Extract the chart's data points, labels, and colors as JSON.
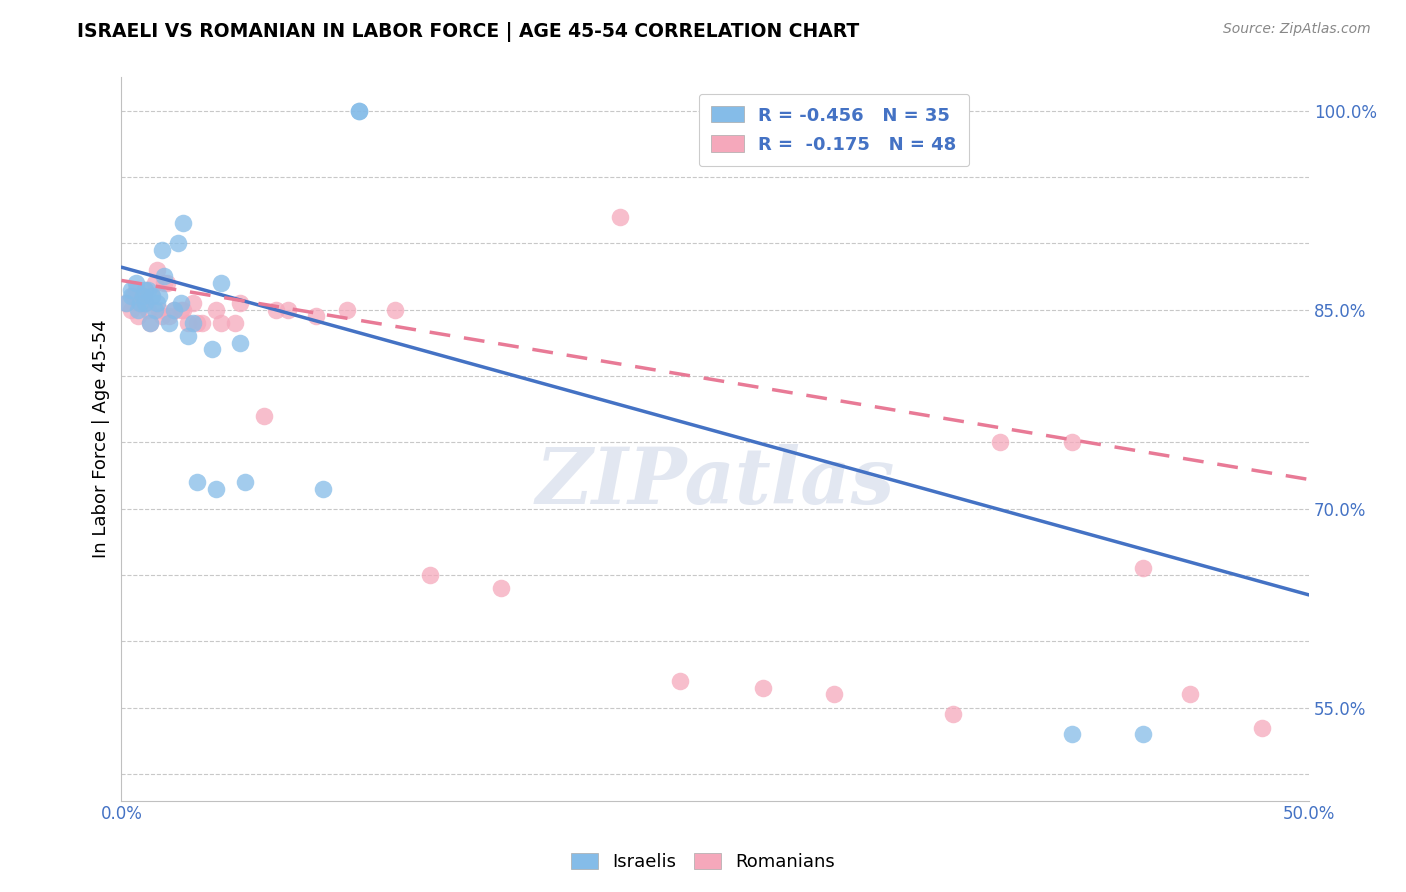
{
  "title": "ISRAELI VS ROMANIAN IN LABOR FORCE | AGE 45-54 CORRELATION CHART",
  "source": "Source: ZipAtlas.com",
  "ylabel": "In Labor Force | Age 45-54",
  "xlabel": "",
  "xlim": [
    0.0,
    0.5
  ],
  "ylim": [
    0.48,
    1.025
  ],
  "xticks": [
    0.0,
    0.1,
    0.2,
    0.3,
    0.4,
    0.5
  ],
  "ytick_labels_shown": [
    0.55,
    0.7,
    0.85,
    1.0
  ],
  "xtick_labels_shown": [
    0.0,
    0.5
  ],
  "israel_color": "#85bce8",
  "romanian_color": "#f5a8bb",
  "israel_line_color": "#4472c4",
  "romanian_line_color": "#e87a96",
  "R_israel": -0.456,
  "N_israel": 35,
  "R_romanian": -0.175,
  "N_romanian": 48,
  "watermark": "ZIPatlas",
  "legend_label_israel": "Israelis",
  "legend_label_romanian": "Romanians",
  "israel_line_x0": 0.0,
  "israel_line_y0": 0.882,
  "israel_line_x1": 0.5,
  "israel_line_y1": 0.635,
  "romanian_line_x0": 0.0,
  "romanian_line_y0": 0.872,
  "romanian_line_x1": 0.5,
  "romanian_line_y1": 0.722,
  "israel_points_x": [
    0.002,
    0.004,
    0.004,
    0.006,
    0.007,
    0.008,
    0.009,
    0.01,
    0.01,
    0.011,
    0.012,
    0.013,
    0.014,
    0.015,
    0.016,
    0.017,
    0.018,
    0.02,
    0.022,
    0.024,
    0.025,
    0.026,
    0.028,
    0.03,
    0.032,
    0.038,
    0.04,
    0.042,
    0.05,
    0.052,
    0.085,
    0.1,
    0.1,
    0.4,
    0.43
  ],
  "israel_points_y": [
    0.855,
    0.86,
    0.865,
    0.87,
    0.85,
    0.855,
    0.86,
    0.865,
    0.855,
    0.865,
    0.84,
    0.86,
    0.85,
    0.855,
    0.86,
    0.895,
    0.875,
    0.84,
    0.85,
    0.9,
    0.855,
    0.915,
    0.83,
    0.84,
    0.72,
    0.82,
    0.715,
    0.87,
    0.825,
    0.72,
    0.715,
    1.0,
    1.0,
    0.53,
    0.53
  ],
  "romanian_points_x": [
    0.002,
    0.004,
    0.005,
    0.006,
    0.007,
    0.008,
    0.009,
    0.01,
    0.01,
    0.011,
    0.012,
    0.013,
    0.014,
    0.015,
    0.016,
    0.017,
    0.018,
    0.019,
    0.02,
    0.022,
    0.025,
    0.026,
    0.028,
    0.03,
    0.032,
    0.034,
    0.04,
    0.042,
    0.048,
    0.05,
    0.06,
    0.065,
    0.07,
    0.082,
    0.095,
    0.115,
    0.13,
    0.16,
    0.21,
    0.235,
    0.27,
    0.3,
    0.35,
    0.37,
    0.4,
    0.43,
    0.45,
    0.48
  ],
  "romanian_points_y": [
    0.855,
    0.85,
    0.86,
    0.865,
    0.845,
    0.855,
    0.86,
    0.855,
    0.865,
    0.85,
    0.84,
    0.86,
    0.87,
    0.88,
    0.85,
    0.845,
    0.87,
    0.87,
    0.845,
    0.85,
    0.85,
    0.85,
    0.84,
    0.855,
    0.84,
    0.84,
    0.85,
    0.84,
    0.84,
    0.855,
    0.77,
    0.85,
    0.85,
    0.845,
    0.85,
    0.85,
    0.65,
    0.64,
    0.92,
    0.57,
    0.565,
    0.56,
    0.545,
    0.75,
    0.75,
    0.655,
    0.56,
    0.535
  ]
}
